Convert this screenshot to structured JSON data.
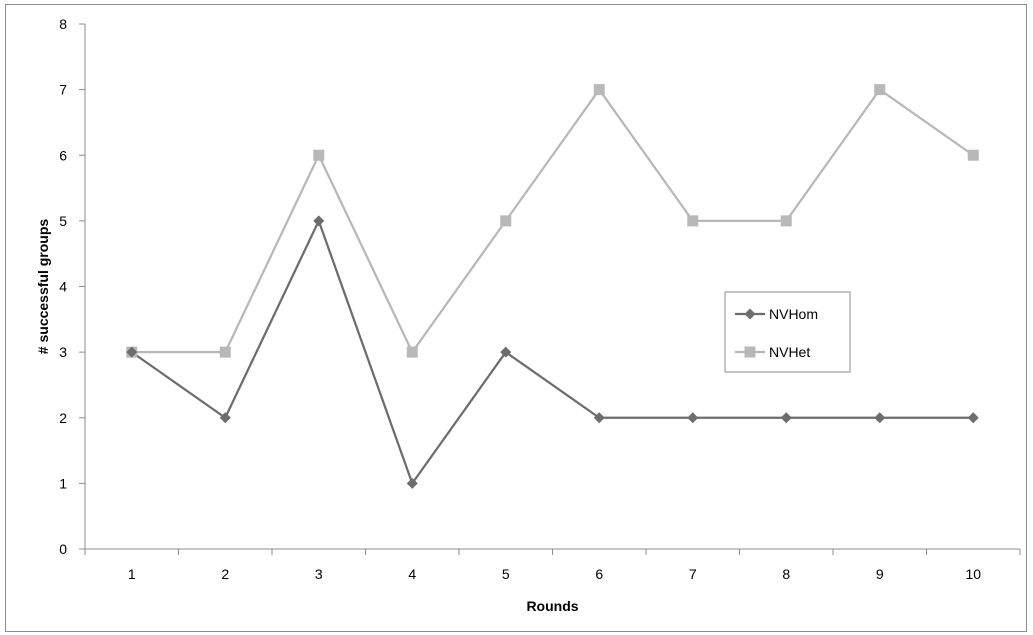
{
  "chart_data": {
    "type": "line",
    "title": "",
    "xlabel": "Rounds",
    "ylabel": "# successful groups",
    "categories": [
      "1",
      "2",
      "3",
      "4",
      "5",
      "6",
      "7",
      "8",
      "9",
      "10"
    ],
    "ylim": [
      0,
      8
    ],
    "y_ticks": [
      "0",
      "1",
      "2",
      "3",
      "4",
      "5",
      "6",
      "7",
      "8"
    ],
    "grid": false,
    "legend_position": "right",
    "series": [
      {
        "name": "NVHom",
        "values": [
          3,
          2,
          5,
          1,
          3,
          2,
          2,
          2,
          2,
          2
        ],
        "color": "#6d6d6d",
        "marker": "diamond"
      },
      {
        "name": "NVHet",
        "values": [
          3,
          3,
          6,
          3,
          5,
          7,
          5,
          5,
          7,
          6
        ],
        "color": "#b8b8b8",
        "marker": "square"
      }
    ]
  }
}
